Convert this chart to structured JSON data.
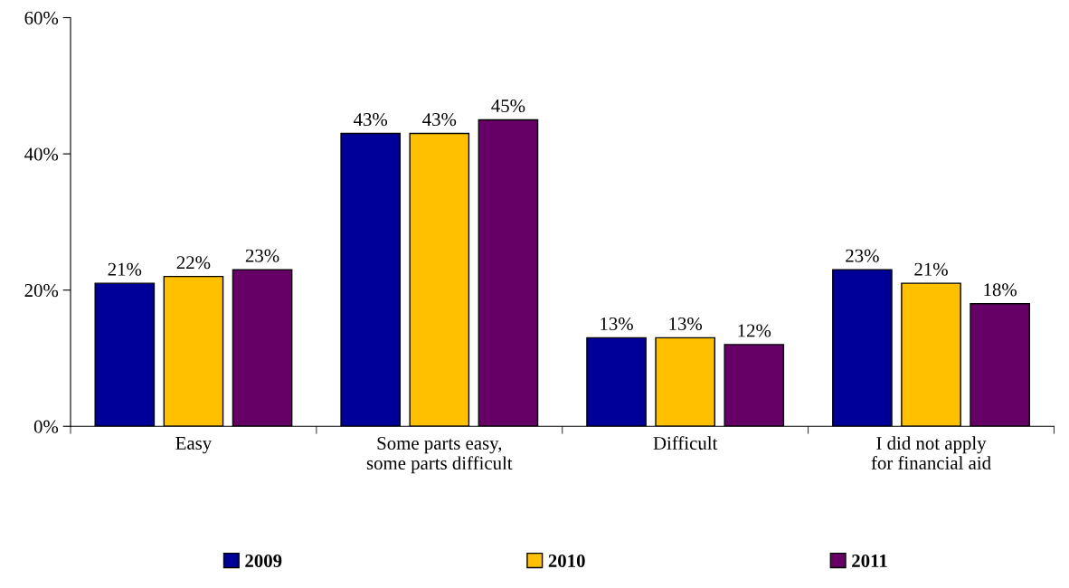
{
  "chart_data": {
    "type": "bar",
    "categories": [
      "Easy",
      "Some parts easy,\nsome parts difficult",
      "Difficult",
      "I did not apply\nfor financial aid"
    ],
    "series": [
      {
        "name": "2009",
        "color": "#000099",
        "values": [
          21,
          43,
          13,
          23
        ],
        "value_labels": [
          "21%",
          "43%",
          "13%",
          "23%"
        ]
      },
      {
        "name": "2010",
        "color": "#ffc000",
        "values": [
          22,
          43,
          13,
          21
        ],
        "value_labels": [
          "22%",
          "43%",
          "13%",
          "21%"
        ]
      },
      {
        "name": "2011",
        "color": "#660066",
        "values": [
          23,
          45,
          12,
          18
        ],
        "value_labels": [
          "23%",
          "45%",
          "12%",
          "18%"
        ]
      }
    ],
    "ylim": [
      0,
      60
    ],
    "yticks": [
      {
        "value": 0,
        "label": "0%"
      },
      {
        "value": 20,
        "label": "20%"
      },
      {
        "value": 40,
        "label": "40%"
      },
      {
        "value": 60,
        "label": "60%"
      }
    ],
    "grid": false,
    "legend": "bottom"
  }
}
